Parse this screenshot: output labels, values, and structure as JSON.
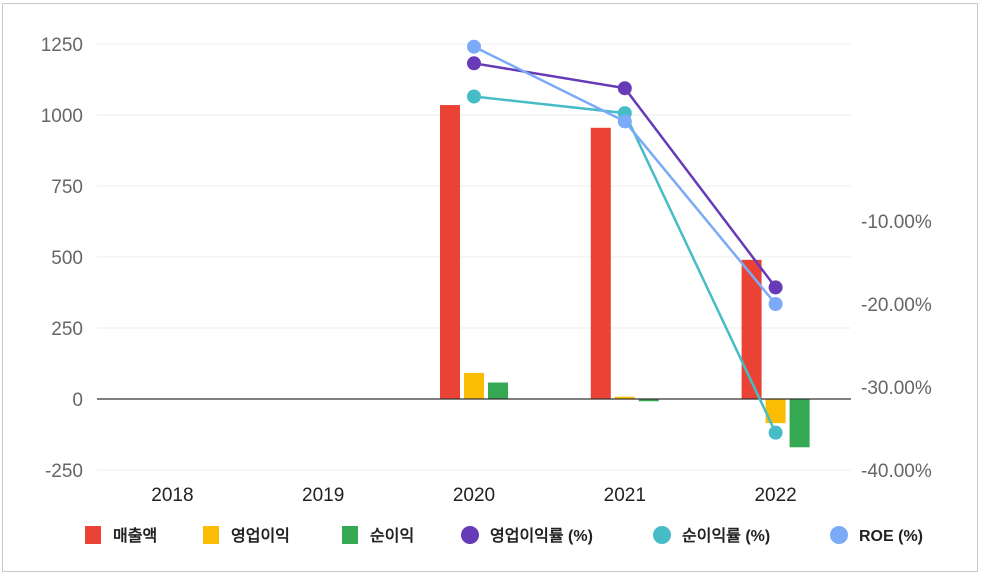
{
  "chart_data": {
    "type": "bar",
    "categories": [
      "2018",
      "2019",
      "2020",
      "2021",
      "2022"
    ],
    "y_left": {
      "ylim": [
        -250,
        1250
      ],
      "ticks": [
        1250,
        1000,
        750,
        500,
        250,
        0,
        -250
      ],
      "tick_labels": [
        "1250",
        "1000",
        "750",
        "500",
        "250",
        "0",
        "-250"
      ]
    },
    "y_right": {
      "ticks": [
        -10,
        -20,
        -30,
        -40
      ],
      "tick_labels": [
        "-10.00%",
        "-20.00%",
        "-30.00%",
        "-40.00%"
      ]
    },
    "bar_series": [
      {
        "name": "매출액",
        "color": "#ea4335",
        "values": [
          null,
          null,
          1035,
          955,
          490
        ]
      },
      {
        "name": "영업이익",
        "color": "#fbbc04",
        "values": [
          null,
          null,
          92,
          8,
          -85
        ]
      },
      {
        "name": "순이익",
        "color": "#34a853",
        "values": [
          null,
          null,
          58,
          -8,
          -170
        ]
      }
    ],
    "line_series": [
      {
        "name": "영업이익률 (%)",
        "color": "#673ab7",
        "values": [
          null,
          null,
          9,
          6,
          -18
        ]
      },
      {
        "name": "순이익률 (%)",
        "color": "#46bdc6",
        "values": [
          null,
          null,
          5,
          3,
          -35.5
        ]
      },
      {
        "name": "ROE (%)",
        "color": "#7baaf7",
        "values": [
          null,
          null,
          11,
          2,
          -20
        ]
      }
    ],
    "legend_position": "bottom",
    "grid": true
  }
}
